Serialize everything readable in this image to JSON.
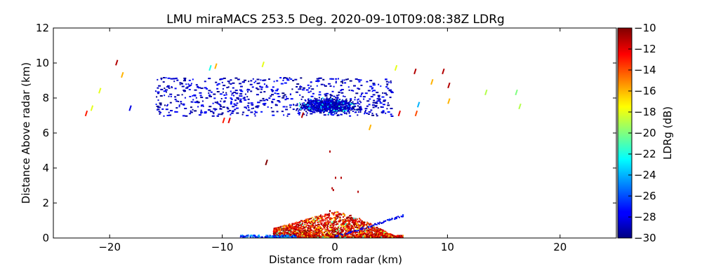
{
  "chart_data": {
    "type": "heatmap",
    "title": "LMU miraMACS 253.5 Deg. 2020-09-10T09:08:38Z  LDRg",
    "xlabel": "Distance from radar (km)",
    "ylabel": "Distance Above radar  (km)",
    "xlim": [
      -25,
      25
    ],
    "ylim": [
      0,
      12
    ],
    "xticks": [
      -20,
      -10,
      0,
      10,
      20
    ],
    "yticks": [
      0,
      2,
      4,
      6,
      8,
      10,
      12
    ],
    "colorbar": {
      "label": "LDRg (dB)",
      "range": [
        -30,
        -10
      ],
      "ticks": [
        -10,
        -12,
        -14,
        -16,
        -18,
        -20,
        -22,
        -24,
        -26,
        -28,
        -30
      ],
      "colormap": "jet"
    },
    "regions": [
      {
        "name": "upper cloud layer",
        "x_range": [
          -18,
          6
        ],
        "y_range": [
          6.8,
          9.3
        ],
        "ldr_db": -29
      },
      {
        "name": "dense cloud core",
        "x_range": [
          -5,
          4
        ],
        "y_range": [
          7.0,
          8.4
        ],
        "ldr_db": -29
      },
      {
        "name": "near-surface clutter",
        "x_range": [
          -6,
          6
        ],
        "y_range": [
          0,
          1.6
        ],
        "ldr_db": -13
      },
      {
        "name": "scattered echoes",
        "x_range": [
          -22,
          17
        ],
        "y_range": [
          6.5,
          10
        ],
        "ldr_db": -18
      }
    ]
  },
  "colors": {
    "jet_low": "#000080",
    "jet_mid": "#7fff7f",
    "jet_high": "#800000"
  }
}
